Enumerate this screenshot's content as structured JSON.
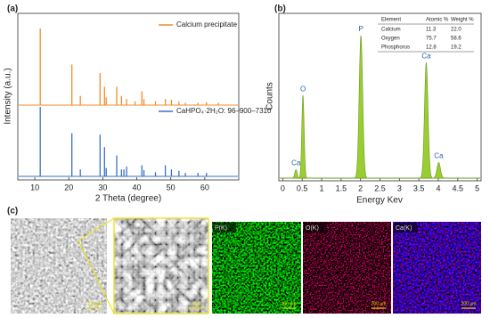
{
  "chart_data": [
    {
      "type": "stem",
      "panel_label": "(a)",
      "x_label": "2 Theta (degree)",
      "y_label": "Intensity (a.u.)",
      "xlim": [
        5,
        70
      ],
      "xticks": [
        10,
        20,
        30,
        40,
        50,
        60
      ],
      "ylim": [
        0,
        100
      ],
      "series": [
        {
          "name": "Calcium precipitate",
          "color": "#f28c28",
          "x": [
            11.6,
            20.9,
            23.4,
            29.2,
            30.5,
            31.0,
            34.1,
            35.5,
            37.0,
            39.5,
            41.5,
            42.1,
            45.5,
            48.4,
            50.2,
            52.4,
            54.3,
            58.0,
            60.5,
            64.0
          ],
          "values": [
            100,
            53,
            12,
            42,
            24,
            10,
            24,
            12,
            8,
            5,
            18,
            8,
            5,
            8,
            7,
            5,
            3,
            3,
            4,
            3
          ]
        },
        {
          "name": "CaHPO₄·2H₂O: 96–900–7310",
          "color": "#3a6fc4",
          "x": [
            11.6,
            20.9,
            23.4,
            29.2,
            30.5,
            31.0,
            34.1,
            35.5,
            36.2,
            37.0,
            41.5,
            42.1,
            45.5,
            48.4,
            50.2,
            52.4,
            54.3,
            58.0,
            60.5
          ],
          "values": [
            100,
            62,
            10,
            60,
            42,
            12,
            30,
            10,
            10,
            14,
            16,
            9,
            6,
            16,
            10,
            8,
            5,
            5,
            5
          ]
        }
      ]
    },
    {
      "type": "spectrum",
      "panel_label": "(b)",
      "x_label": "Energy Kev",
      "y_label": "Counts",
      "xlim": [
        -0.1,
        5.1
      ],
      "xticks": [
        0,
        0.5,
        1,
        1.5,
        2,
        2.5,
        3,
        3.5,
        4,
        4.5,
        5
      ],
      "ylim": [
        0,
        100
      ],
      "color": "#9acd32",
      "peaks": {
        "labels": [
          "Ca",
          "O",
          "P",
          "Ca",
          "Ca"
        ],
        "x": [
          0.34,
          0.52,
          2.01,
          3.69,
          4.01
        ],
        "values": [
          6,
          58,
          100,
          81,
          11
        ]
      },
      "table": {
        "header": [
          "Element",
          "Atomic %",
          "Weight %"
        ],
        "rows": [
          [
            "Calcium",
            "11.3",
            "22.0"
          ],
          [
            "Oxygen",
            "75.7",
            "58.6"
          ],
          [
            "Phosphorus",
            "12.8",
            "19.2"
          ]
        ]
      }
    }
  ],
  "micrographs": {
    "panel_label": "(c)",
    "images": [
      {
        "scale": "100 μm"
      },
      {
        "scale": "4 μm"
      },
      {
        "label": "P(K)",
        "scale": "200 μm"
      },
      {
        "label": "O(K)",
        "scale": "200 μm"
      },
      {
        "label": "Ca(K)",
        "scale": "200 μm"
      }
    ]
  }
}
